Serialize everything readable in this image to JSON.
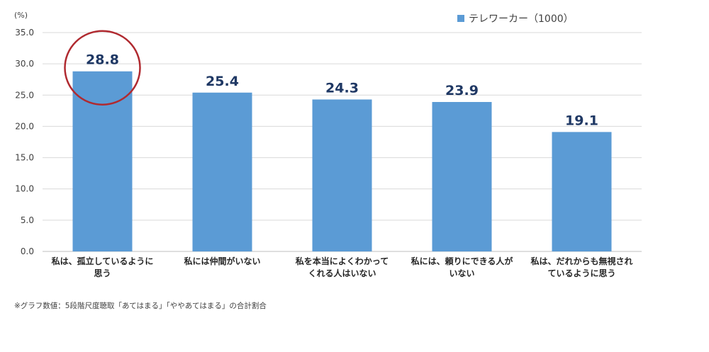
{
  "chart_data": {
    "type": "bar",
    "unit_label": "(%)",
    "categories": [
      [
        "私は、孤立しているように",
        "思う"
      ],
      [
        "私には仲間がいない"
      ],
      [
        "私を本当によくわかって",
        "くれる人はいない"
      ],
      [
        "私には、頼りにできる人が",
        "いない"
      ],
      [
        "私は、だれからも無視され",
        "ているように思う"
      ]
    ],
    "series": [
      {
        "name": "テレワーカー（1000）",
        "values": [
          28.8,
          25.4,
          24.3,
          23.9,
          19.1
        ]
      }
    ],
    "data_labels": [
      "28.8",
      "25.4",
      "24.3",
      "23.9",
      "19.1"
    ],
    "ylim": [
      0,
      35
    ],
    "yticks": [
      "0.0",
      "5.0",
      "10.0",
      "15.0",
      "20.0",
      "25.0",
      "30.0",
      "35.0"
    ],
    "grid": true,
    "legend_position": "top-right",
    "highlight": {
      "category_index": 0,
      "shape": "circle"
    },
    "note": "※グラフ数値：5段階尺度聴取「あてはまる」「ややあてはまる」の合計割合",
    "colors": {
      "bar": "#5B9BD5",
      "data_label": "#1F3864",
      "highlight_circle": "#B02A30",
      "grid": "#D9D9D9"
    }
  }
}
